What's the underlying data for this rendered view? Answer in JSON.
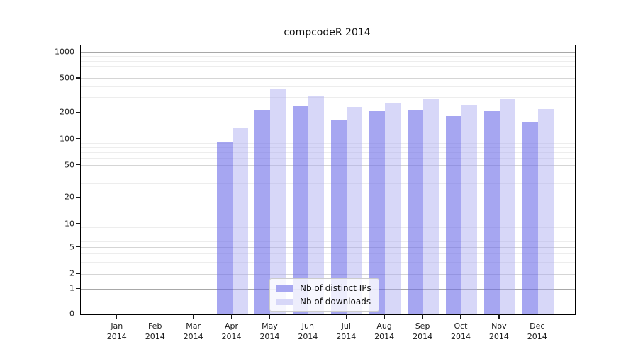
{
  "title": "compcodeR 2014",
  "y_axis": {
    "ticks": [
      0,
      1,
      2,
      5,
      10,
      20,
      50,
      100,
      200,
      500,
      1000
    ]
  },
  "x_axis": {
    "months": [
      "Jan",
      "Feb",
      "Mar",
      "Apr",
      "May",
      "Jun",
      "Jul",
      "Aug",
      "Sep",
      "Oct",
      "Nov",
      "Dec"
    ],
    "year": "2014"
  },
  "legend": {
    "items": [
      {
        "label": "Nb of distinct IPs",
        "color": "#a6a6f1"
      },
      {
        "label": "Nb of downloads",
        "color": "#d7d7f8"
      }
    ]
  },
  "chart_data": {
    "type": "bar",
    "title": "compcodeR 2014",
    "categories": [
      "Jan 2014",
      "Feb 2014",
      "Mar 2014",
      "Apr 2014",
      "May 2014",
      "Jun 2014",
      "Jul 2014",
      "Aug 2014",
      "Sep 2014",
      "Oct 2014",
      "Nov 2014",
      "Dec 2014"
    ],
    "series": [
      {
        "name": "Nb of distinct IPs",
        "fill": "rgba(107,107,232,0.60)",
        "color": "#a6a6f1",
        "values": [
          0,
          0,
          0,
          94,
          212,
          238,
          168,
          210,
          218,
          185,
          208,
          157
        ]
      },
      {
        "name": "Nb of downloads",
        "fill": "rgba(166,166,239,0.45)",
        "color": "#d7d7f8",
        "values": [
          0,
          0,
          0,
          133,
          385,
          320,
          235,
          258,
          290,
          245,
          290,
          222
        ]
      }
    ],
    "ylabel": "",
    "xlabel": "",
    "y_ticks": [
      0,
      1,
      2,
      5,
      10,
      20,
      50,
      100,
      200,
      500,
      1000
    ],
    "y_scale": "log-like (0,1 region compressed)",
    "ylim": [
      0,
      1200
    ],
    "grid": true,
    "legend_position": "bottom-center"
  }
}
